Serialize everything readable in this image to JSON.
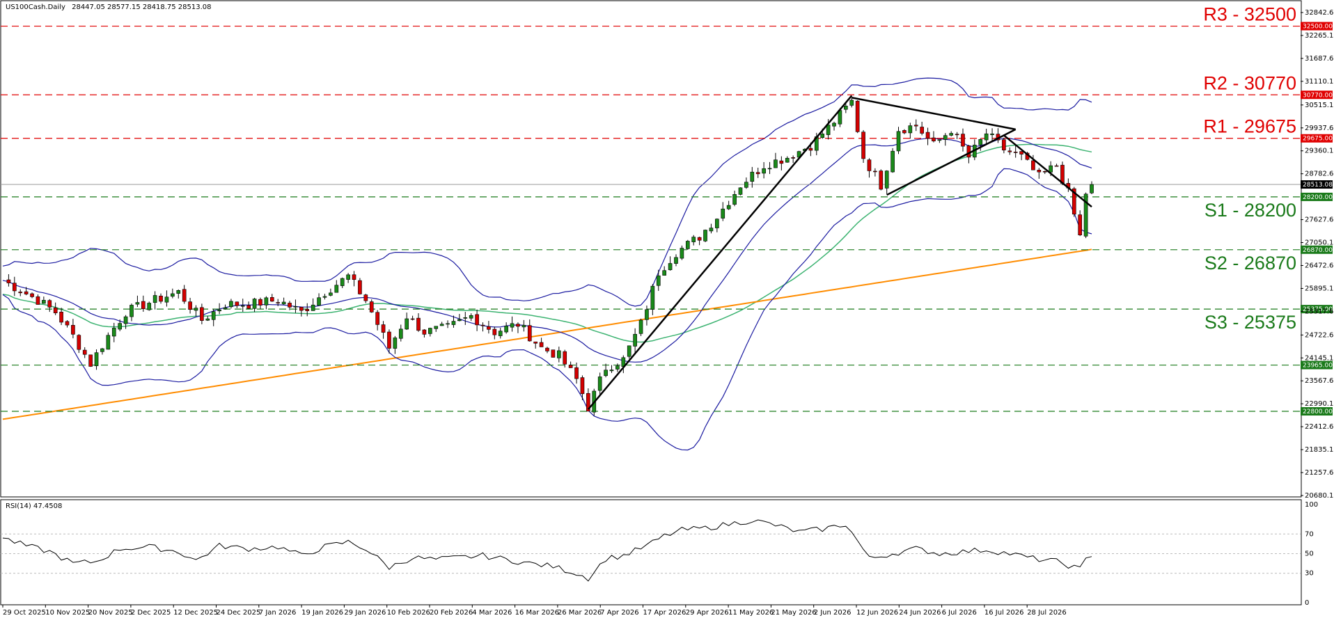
{
  "header": {
    "symbol": "US100Cash.Daily",
    "ohlc": "28447.05 28577.15 28418.75 28513.08"
  },
  "rsi_header": "RSI(14) 47.4508",
  "current_price_label": "28513.08",
  "colors": {
    "resistance": "#e00000",
    "support": "#1a7a1a",
    "bullish": "#1a8a1a",
    "bearish": "#d40000",
    "bollinger": "#1a1aa0",
    "ma_green": "#3cb371",
    "ma_orange": "#ff8c00",
    "trendline": "#000000",
    "rsi_line": "#000000"
  },
  "levels": [
    {
      "id": "r3",
      "text": "R3 - 32500",
      "price": 32500,
      "tag": "32500.00",
      "kind": "resistance"
    },
    {
      "id": "r2",
      "text": "R2 - 30770",
      "price": 30770,
      "tag": "30770.00",
      "kind": "resistance"
    },
    {
      "id": "r1",
      "text": "R1 - 29675",
      "price": 29675,
      "tag": "29675.00",
      "kind": "resistance"
    },
    {
      "id": "s1",
      "text": "S1 - 28200",
      "price": 28200,
      "tag": "28200.00",
      "kind": "support"
    },
    {
      "id": "s2",
      "text": "S2 - 26870",
      "price": 26870,
      "tag": "26870.00",
      "kind": "support"
    },
    {
      "id": "s3",
      "text": "S3 - 25375",
      "price": 25375,
      "tag": "25375.00",
      "kind": "support"
    },
    {
      "id": "l23965",
      "text": "",
      "price": 23965,
      "tag": "23965.00",
      "kind": "support"
    },
    {
      "id": "l22800",
      "text": "",
      "price": 22800,
      "tag": "22800.00",
      "kind": "support"
    }
  ],
  "chart_data": {
    "type": "candlestick",
    "y_ticks": [
      "32842.60",
      "32265.10",
      "31687.60",
      "31110.10",
      "30515.10",
      "29937.60",
      "29360.10",
      "28782.60",
      "27627.60",
      "27050.10",
      "26472.60",
      "25895.10",
      "25317.60",
      "24722.60",
      "24145.10",
      "23567.60",
      "22990.10",
      "22412.60",
      "21835.10",
      "21257.60",
      "20680.10"
    ],
    "ylim": [
      20680.1,
      32842.6
    ],
    "x_labels": [
      "29 Oct 2025",
      "10 Nov 2025",
      "20 Nov 2025",
      "2 Dec 2025",
      "12 Dec 2025",
      "24 Dec 2025",
      "7 Jan 2026",
      "19 Jan 2026",
      "29 Jan 2026",
      "10 Feb 2026",
      "20 Feb 2026",
      "4 Mar 2026",
      "16 Mar 2026",
      "26 Mar 2026",
      "7 Apr 2026",
      "17 Apr 2026",
      "29 Apr 2026",
      "11 May 2026",
      "21 May 2026",
      "2 Jun 2026",
      "12 Jun 2026",
      "24 Jun 2026",
      "6 Jul 2026",
      "16 Jul 2026",
      "28 Jul 2026"
    ],
    "close_path": [
      {
        "x": 0,
        "y": 26100
      },
      {
        "x": 6,
        "y": 25600
      },
      {
        "x": 9,
        "y": 25300
      },
      {
        "x": 12,
        "y": 24700
      },
      {
        "x": 15,
        "y": 24000
      },
      {
        "x": 18,
        "y": 24700
      },
      {
        "x": 21,
        "y": 25300
      },
      {
        "x": 26,
        "y": 25600
      },
      {
        "x": 30,
        "y": 25800
      },
      {
        "x": 34,
        "y": 25100
      },
      {
        "x": 38,
        "y": 25500
      },
      {
        "x": 42,
        "y": 25500
      },
      {
        "x": 47,
        "y": 25600
      },
      {
        "x": 51,
        "y": 25300
      },
      {
        "x": 55,
        "y": 25800
      },
      {
        "x": 59,
        "y": 26200
      },
      {
        "x": 62,
        "y": 25600
      },
      {
        "x": 66,
        "y": 24400
      },
      {
        "x": 69,
        "y": 25200
      },
      {
        "x": 72,
        "y": 24800
      },
      {
        "x": 76,
        "y": 24900
      },
      {
        "x": 80,
        "y": 25200
      },
      {
        "x": 84,
        "y": 24800
      },
      {
        "x": 88,
        "y": 25000
      },
      {
        "x": 92,
        "y": 24400
      },
      {
        "x": 95,
        "y": 24200
      },
      {
        "x": 98,
        "y": 23600
      },
      {
        "x": 100,
        "y": 22900
      },
      {
        "x": 103,
        "y": 23900
      },
      {
        "x": 106,
        "y": 24100
      },
      {
        "x": 109,
        "y": 25000
      },
      {
        "x": 112,
        "y": 26300
      },
      {
        "x": 115,
        "y": 26800
      },
      {
        "x": 119,
        "y": 27200
      },
      {
        "x": 122,
        "y": 27700
      },
      {
        "x": 126,
        "y": 28500
      },
      {
        "x": 130,
        "y": 29000
      },
      {
        "x": 134,
        "y": 29200
      },
      {
        "x": 138,
        "y": 29500
      },
      {
        "x": 142,
        "y": 30100
      },
      {
        "x": 145,
        "y": 30600
      },
      {
        "x": 147,
        "y": 29200
      },
      {
        "x": 150,
        "y": 28500
      },
      {
        "x": 153,
        "y": 29900
      },
      {
        "x": 156,
        "y": 30000
      },
      {
        "x": 159,
        "y": 29500
      },
      {
        "x": 162,
        "y": 29900
      },
      {
        "x": 165,
        "y": 29200
      },
      {
        "x": 168,
        "y": 29800
      },
      {
        "x": 171,
        "y": 29400
      },
      {
        "x": 174,
        "y": 29200
      },
      {
        "x": 177,
        "y": 28700
      },
      {
        "x": 180,
        "y": 29000
      },
      {
        "x": 182,
        "y": 28300
      },
      {
        "x": 184,
        "y": 27200
      },
      {
        "x": 185,
        "y": 28300
      },
      {
        "x": 186,
        "y": 28513
      }
    ],
    "rsi": {
      "levels": [
        100,
        70,
        50,
        30,
        0
      ],
      "value": 47.4508,
      "series": [
        {
          "x": 0,
          "y": 66
        },
        {
          "x": 4,
          "y": 58
        },
        {
          "x": 8,
          "y": 52
        },
        {
          "x": 12,
          "y": 40
        },
        {
          "x": 16,
          "y": 42
        },
        {
          "x": 20,
          "y": 55
        },
        {
          "x": 25,
          "y": 57
        },
        {
          "x": 30,
          "y": 52
        },
        {
          "x": 33,
          "y": 43
        },
        {
          "x": 37,
          "y": 58
        },
        {
          "x": 42,
          "y": 55
        },
        {
          "x": 47,
          "y": 57
        },
        {
          "x": 51,
          "y": 48
        },
        {
          "x": 55,
          "y": 57
        },
        {
          "x": 59,
          "y": 62
        },
        {
          "x": 62,
          "y": 55
        },
        {
          "x": 66,
          "y": 36
        },
        {
          "x": 70,
          "y": 46
        },
        {
          "x": 74,
          "y": 44
        },
        {
          "x": 78,
          "y": 46
        },
        {
          "x": 82,
          "y": 48
        },
        {
          "x": 86,
          "y": 44
        },
        {
          "x": 90,
          "y": 40
        },
        {
          "x": 94,
          "y": 37
        },
        {
          "x": 98,
          "y": 30
        },
        {
          "x": 100,
          "y": 25
        },
        {
          "x": 103,
          "y": 45
        },
        {
          "x": 106,
          "y": 48
        },
        {
          "x": 110,
          "y": 58
        },
        {
          "x": 113,
          "y": 68
        },
        {
          "x": 116,
          "y": 74
        },
        {
          "x": 120,
          "y": 76
        },
        {
          "x": 124,
          "y": 80
        },
        {
          "x": 128,
          "y": 84
        },
        {
          "x": 132,
          "y": 79
        },
        {
          "x": 136,
          "y": 72
        },
        {
          "x": 140,
          "y": 75
        },
        {
          "x": 144,
          "y": 80
        },
        {
          "x": 146,
          "y": 63
        },
        {
          "x": 148,
          "y": 45
        },
        {
          "x": 152,
          "y": 50
        },
        {
          "x": 156,
          "y": 55
        },
        {
          "x": 160,
          "y": 50
        },
        {
          "x": 164,
          "y": 52
        },
        {
          "x": 168,
          "y": 54
        },
        {
          "x": 172,
          "y": 50
        },
        {
          "x": 176,
          "y": 45
        },
        {
          "x": 180,
          "y": 42
        },
        {
          "x": 183,
          "y": 36
        },
        {
          "x": 184,
          "y": 34
        },
        {
          "x": 185,
          "y": 44
        },
        {
          "x": 186,
          "y": 47
        }
      ]
    },
    "trendlines": [
      {
        "name": "rally",
        "from": {
          "x": 100,
          "y": 22850
        },
        "to": {
          "x": 145,
          "y": 30750
        }
      },
      {
        "name": "upper-triangle",
        "from": {
          "x": 145,
          "y": 30700
        },
        "to": {
          "x": 173,
          "y": 29900
        }
      },
      {
        "name": "lower-triangle",
        "from": {
          "x": 151,
          "y": 28250
        },
        "to": {
          "x": 173,
          "y": 29900
        }
      },
      {
        "name": "descending",
        "from": {
          "x": 171,
          "y": 29750
        },
        "to": {
          "x": 186,
          "y": 27950
        }
      }
    ]
  }
}
